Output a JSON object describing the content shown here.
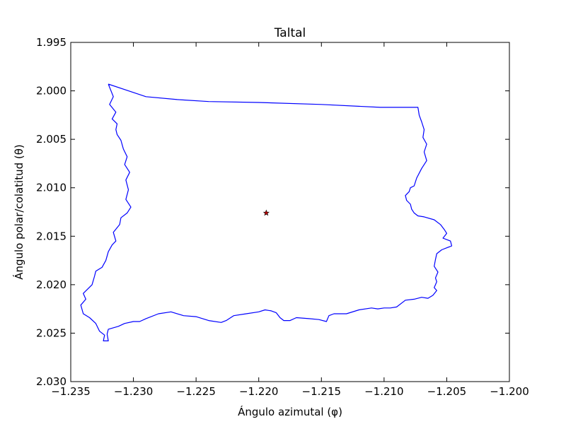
{
  "chart_data": {
    "type": "line",
    "title": "Taltal",
    "xlabel": "Ángulo azimutal (φ)",
    "ylabel": "Ángulo polar/colatitud (θ)",
    "xlim": [
      -1.235,
      -1.2
    ],
    "ylim": [
      1.995,
      2.03
    ],
    "y_inverted": true,
    "grid": false,
    "x_ticks": [
      -1.235,
      -1.23,
      -1.225,
      -1.22,
      -1.215,
      -1.21,
      -1.205,
      -1.2
    ],
    "x_tick_labels": [
      "−1.235",
      "−1.230",
      "−1.225",
      "−1.220",
      "−1.215",
      "−1.210",
      "−1.205",
      "−1.200"
    ],
    "y_ticks": [
      1.995,
      2.0,
      2.005,
      2.01,
      2.015,
      2.02,
      2.025,
      2.03
    ],
    "y_tick_labels": [
      "1.995",
      "2.000",
      "2.005",
      "2.010",
      "2.015",
      "2.020",
      "2.025",
      "2.030"
    ],
    "series": [
      {
        "color": "#0000ff",
        "x": [
          -1.232,
          -1.229,
          -1.2265,
          -1.224,
          -1.22,
          -1.215,
          -1.2103,
          -1.2073,
          -1.2072,
          -1.207,
          -1.2068,
          -1.2069,
          -1.2066,
          -1.2068,
          -1.2066,
          -1.207,
          -1.2074,
          -1.2076,
          -1.2079,
          -1.208,
          -1.2083,
          -1.2082,
          -1.2079,
          -1.2078,
          -1.2076,
          -1.2073,
          -1.2068,
          -1.206,
          -1.2055,
          -1.2052,
          -1.205,
          -1.2053,
          -1.2047,
          -1.2046,
          -1.205,
          -1.2054,
          -1.2058,
          -1.2059,
          -1.206,
          -1.2057,
          -1.2059,
          -1.2058,
          -1.2059,
          -1.206,
          -1.2058,
          -1.2061,
          -1.2065,
          -1.207,
          -1.2076,
          -1.2083,
          -1.209,
          -1.2095,
          -1.21,
          -1.2105,
          -1.211,
          -1.212,
          -1.213,
          -1.214,
          -1.2144,
          -1.2146,
          -1.2152,
          -1.216,
          -1.217,
          -1.2175,
          -1.218,
          -1.2183,
          -1.2186,
          -1.219,
          -1.2195,
          -1.22,
          -1.221,
          -1.222,
          -1.2226,
          -1.223,
          -1.224,
          -1.225,
          -1.226,
          -1.227,
          -1.228,
          -1.229,
          -1.2295,
          -1.23,
          -1.2307,
          -1.2312,
          -1.232,
          -1.2321,
          -1.232,
          -1.2324,
          -1.2323,
          -1.2327,
          -1.233,
          -1.2335,
          -1.234,
          -1.2342,
          -1.2338,
          -1.234,
          -1.2333,
          -1.2331,
          -1.233,
          -1.2325,
          -1.2322,
          -1.232,
          -1.2317,
          -1.2314,
          -1.2316,
          -1.2311,
          -1.231,
          -1.2305,
          -1.2302,
          -1.2306,
          -1.2304,
          -1.2306,
          -1.2303,
          -1.2307,
          -1.2305,
          -1.2308,
          -1.231,
          -1.2313,
          -1.2314,
          -1.2313,
          -1.2317,
          -1.2314,
          -1.2319,
          -1.2316,
          -1.232
        ],
        "y": [
          1.9993,
          2.0006,
          2.0009,
          2.0011,
          2.0012,
          2.0014,
          2.0017,
          2.0017,
          2.0025,
          2.0032,
          2.004,
          2.0048,
          2.0055,
          2.0063,
          2.0072,
          2.008,
          2.009,
          2.0098,
          2.01,
          2.0104,
          2.0108,
          2.0113,
          2.0117,
          2.0122,
          2.0126,
          2.0129,
          2.013,
          2.0133,
          2.0138,
          2.0143,
          2.0147,
          2.0152,
          2.0155,
          2.016,
          2.0162,
          2.0164,
          2.0168,
          2.0174,
          2.0181,
          2.0187,
          2.0193,
          2.0197,
          2.02,
          2.0203,
          2.0206,
          2.0211,
          2.0214,
          2.0213,
          2.0215,
          2.0216,
          2.0223,
          2.0224,
          2.0224,
          2.0225,
          2.0224,
          2.0226,
          2.023,
          2.023,
          2.0232,
          2.0238,
          2.0236,
          2.0235,
          2.0234,
          2.0237,
          2.0237,
          2.0234,
          2.0229,
          2.0227,
          2.0226,
          2.0228,
          2.023,
          2.0232,
          2.0237,
          2.0239,
          2.0237,
          2.0233,
          2.0232,
          2.0228,
          2.023,
          2.0235,
          2.0238,
          2.0238,
          2.024,
          2.0243,
          2.0246,
          2.0251,
          2.0258,
          2.0258,
          2.0252,
          2.0248,
          2.024,
          2.0234,
          2.023,
          2.0221,
          2.0215,
          2.0209,
          2.02,
          2.0191,
          2.0186,
          2.0182,
          2.0175,
          2.0166,
          2.0159,
          2.0155,
          2.0146,
          2.0138,
          2.0131,
          2.0126,
          2.012,
          2.0112,
          2.0102,
          2.0092,
          2.0084,
          2.0076,
          2.0068,
          2.006,
          2.0051,
          2.0045,
          2.004,
          2.0034,
          2.0029,
          2.0022,
          2.0014,
          2.0006,
          1.9993
        ]
      }
    ],
    "markers": [
      {
        "shape": "star",
        "color": "#b80000",
        "x": -1.2194,
        "y": 2.0126
      }
    ]
  }
}
